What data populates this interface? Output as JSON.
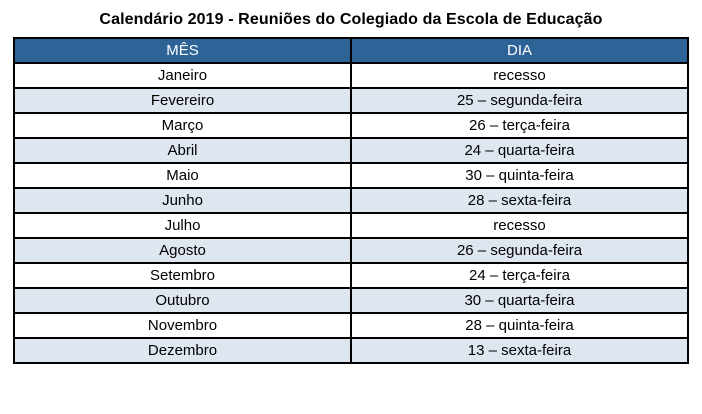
{
  "title": "Calendário 2019 - Reuniões do Colegiado da Escola de Educação",
  "table": {
    "headers": [
      "MÊS",
      "DIA"
    ],
    "rows": [
      {
        "month": "Janeiro",
        "day": "recesso"
      },
      {
        "month": "Fevereiro",
        "day": "25 – segunda-feira"
      },
      {
        "month": "Março",
        "day": "26 – terça-feira"
      },
      {
        "month": "Abril",
        "day": "24 – quarta-feira"
      },
      {
        "month": "Maio",
        "day": "30 – quinta-feira"
      },
      {
        "month": "Junho",
        "day": "28 – sexta-feira"
      },
      {
        "month": "Julho",
        "day": "recesso"
      },
      {
        "month": "Agosto",
        "day": "26 – segunda-feira"
      },
      {
        "month": "Setembro",
        "day": "24 – terça-feira"
      },
      {
        "month": "Outubro",
        "day": "30 – quarta-feira"
      },
      {
        "month": "Novembro",
        "day": "28 – quinta-feira"
      },
      {
        "month": "Dezembro",
        "day": "13 – sexta-feira"
      }
    ],
    "colors": {
      "header_bg": "#2d6397",
      "header_text": "#ffffff",
      "alt_row_bg": "#dee6ef",
      "border": "#000000"
    }
  }
}
